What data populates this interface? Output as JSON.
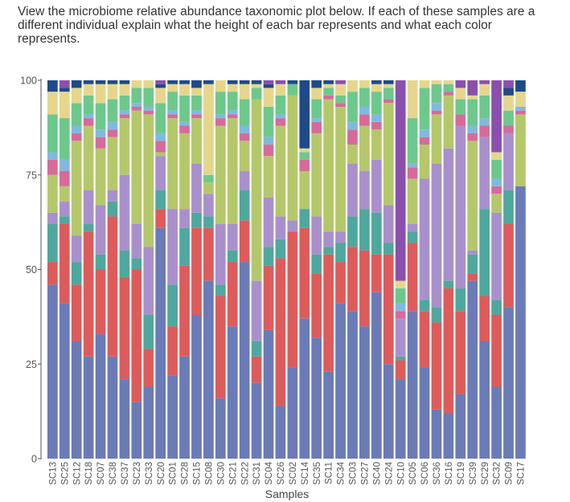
{
  "question": "View the microbiome relative abundance taxonomic plot below. If each of these samples are a different individual explain what the height of each bar represents and what each color represents.",
  "chart_data": {
    "type": "bar",
    "stacked": true,
    "title": "",
    "xlabel": "Samples",
    "ylabel": "",
    "ylim": [
      0,
      100
    ],
    "yticks": [
      "0",
      "25",
      "50",
      "75",
      "100"
    ],
    "grid": false,
    "legend": "none",
    "categories": [
      "SC13",
      "SC25",
      "SC12",
      "SC18",
      "SC07",
      "SC38",
      "SC37",
      "SC23",
      "SC33",
      "SC20",
      "SC01",
      "SC28",
      "SC15",
      "SC08",
      "SC30",
      "SC21",
      "SC22",
      "SC31",
      "SC04",
      "SC26",
      "SC02",
      "SC14",
      "SC35",
      "SC11",
      "SC34",
      "SC03",
      "SC27",
      "SC40",
      "SC24",
      "SC10",
      "SC05",
      "SC06",
      "SC36",
      "SC16",
      "SC19",
      "SC39",
      "SC29",
      "SC32",
      "SC09",
      "SC17"
    ],
    "series_colors": [
      "#6b7bb8",
      "#de5b5b",
      "#4fa89d",
      "#a990cd",
      "#b4c86a",
      "#d86a9a",
      "#80b9e0",
      "#6cc98b",
      "#e6d68c",
      "#1f4a8a",
      "#8a4faf"
    ],
    "rows": [
      [
        46,
        6,
        10,
        3,
        10,
        4,
        2,
        10,
        6,
        3,
        0
      ],
      [
        41,
        21,
        2,
        4,
        4,
        4,
        3,
        11,
        7,
        1,
        2
      ],
      [
        31,
        15,
        6,
        7,
        25,
        2,
        2,
        6,
        4,
        2,
        0
      ],
      [
        27,
        33,
        2,
        9,
        17,
        2,
        1,
        5,
        3,
        1,
        0
      ],
      [
        33,
        17,
        4,
        13,
        15,
        3,
        2,
        7,
        5,
        1,
        0
      ],
      [
        27,
        37,
        4,
        3,
        14,
        2,
        2,
        6,
        4,
        1,
        0
      ],
      [
        21,
        27,
        7,
        20,
        15,
        1,
        1,
        4,
        3,
        1,
        0
      ],
      [
        15,
        35,
        3,
        9,
        30,
        1,
        1,
        4,
        2,
        0,
        0
      ],
      [
        19,
        10,
        9,
        18,
        35,
        1,
        1,
        5,
        2,
        0,
        0
      ],
      [
        61,
        5,
        5,
        9,
        1,
        3,
        2,
        8,
        4,
        1,
        1
      ],
      [
        22,
        13,
        11,
        20,
        24,
        1,
        1,
        5,
        2,
        1,
        0
      ],
      [
        27,
        24,
        10,
        5,
        20,
        2,
        1,
        7,
        3,
        1,
        0
      ],
      [
        38,
        23,
        4,
        13,
        12,
        1,
        1,
        4,
        2,
        2,
        0
      ],
      [
        47,
        14,
        3,
        6,
        3,
        0,
        0,
        2,
        24,
        1,
        0
      ],
      [
        16,
        27,
        3,
        16,
        26,
        2,
        1,
        6,
        3,
        0,
        0
      ],
      [
        35,
        17,
        3,
        7,
        28,
        1,
        1,
        5,
        2,
        1,
        0
      ],
      [
        52,
        11,
        8,
        5,
        8,
        2,
        2,
        7,
        4,
        1,
        0
      ],
      [
        20,
        7,
        4,
        16,
        48,
        0,
        0,
        3,
        1,
        1,
        0
      ],
      [
        34,
        17,
        5,
        13,
        11,
        3,
        2,
        8,
        5,
        1,
        1
      ],
      [
        14,
        39,
        5,
        6,
        24,
        2,
        1,
        5,
        3,
        0,
        1
      ],
      [
        24,
        36,
        0,
        3,
        33,
        0,
        0,
        3,
        0,
        1,
        0
      ],
      [
        37,
        24,
        5,
        0,
        10,
        3,
        0,
        2,
        1,
        18,
        0
      ],
      [
        32,
        17,
        5,
        10,
        22,
        3,
        1,
        5,
        3,
        2,
        0
      ],
      [
        23,
        31,
        2,
        4,
        35,
        1,
        0,
        2,
        1,
        1,
        0
      ],
      [
        41,
        11,
        5,
        3,
        33,
        1,
        0,
        2,
        3,
        0,
        1
      ],
      [
        39,
        17,
        8,
        14,
        5,
        4,
        2,
        8,
        3,
        0,
        0
      ],
      [
        35,
        20,
        11,
        10,
        12,
        3,
        2,
        5,
        2,
        0,
        0
      ],
      [
        44,
        10,
        11,
        14,
        8,
        2,
        2,
        6,
        2,
        1,
        0
      ],
      [
        25,
        29,
        3,
        10,
        27,
        1,
        0,
        3,
        1,
        1,
        0
      ],
      [
        21,
        5,
        1,
        10,
        0,
        2,
        2,
        4,
        2,
        0,
        53
      ],
      [
        39,
        18,
        3,
        2,
        12,
        3,
        1,
        12,
        10,
        0,
        0
      ],
      [
        24,
        15,
        3,
        32,
        9,
        2,
        2,
        11,
        2,
        0,
        0
      ],
      [
        13,
        23,
        4,
        38,
        13,
        1,
        2,
        5,
        1,
        0,
        0
      ],
      [
        12,
        33,
        2,
        35,
        14,
        1,
        0,
        2,
        1,
        0,
        0
      ],
      [
        17,
        22,
        6,
        43,
        0,
        3,
        0,
        4,
        3,
        0,
        2
      ],
      [
        47,
        2,
        5,
        1,
        29,
        2,
        2,
        7,
        1,
        0,
        4
      ],
      [
        31,
        12,
        23,
        19,
        0,
        3,
        2,
        6,
        3,
        0,
        1
      ],
      [
        19,
        19,
        4,
        23,
        5,
        2,
        2,
        5,
        2,
        0,
        19
      ],
      [
        40,
        22,
        9,
        15,
        0,
        2,
        0,
        4,
        4,
        2,
        2
      ],
      [
        72,
        0,
        0,
        0,
        19,
        1,
        1,
        0,
        4,
        3,
        0
      ]
    ]
  }
}
